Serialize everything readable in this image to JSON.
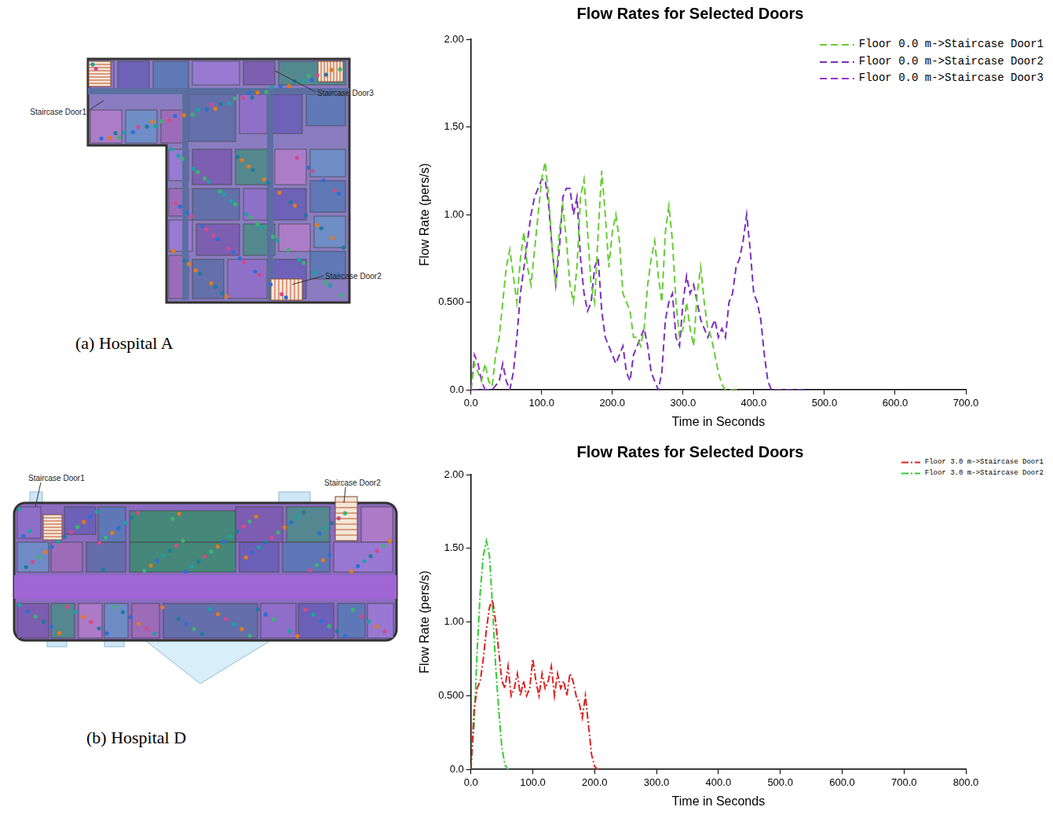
{
  "chart_data": [
    {
      "type": "line",
      "title": "Flow Rates for Selected Doors",
      "x_label": "Time in Seconds",
      "y_label": "Flow Rate (pers/s)",
      "xlim": [
        0,
        700
      ],
      "xticks": [
        {
          "value": 0,
          "label": "0.0"
        },
        {
          "value": 100,
          "label": "100.0"
        },
        {
          "value": 200,
          "label": "200.0"
        },
        {
          "value": 300,
          "label": "300.0"
        },
        {
          "value": 400,
          "label": "400.0"
        },
        {
          "value": 500,
          "label": "500.0"
        },
        {
          "value": 600,
          "label": "600.0"
        },
        {
          "value": 700,
          "label": "700.0"
        }
      ],
      "ylim": [
        0,
        2
      ],
      "yticks": [
        {
          "value": 0,
          "label": "0.0"
        },
        {
          "value": 0.5,
          "label": "0.500"
        },
        {
          "value": 1,
          "label": "1.00"
        },
        {
          "value": 1.5,
          "label": "1.50"
        },
        {
          "value": 2,
          "label": "2.00"
        }
      ],
      "grid": false,
      "legend": "top-right",
      "series": [
        {
          "name": "Floor 0.0 m->Staircase Door1",
          "color": "#66cc33",
          "line_style": "dashed",
          "x": [
            0,
            5,
            10,
            15,
            20,
            25,
            30,
            35,
            40,
            45,
            50,
            55,
            60,
            65,
            70,
            75,
            80,
            85,
            90,
            95,
            100,
            105,
            110,
            115,
            120,
            125,
            130,
            135,
            140,
            145,
            150,
            155,
            160,
            165,
            170,
            175,
            180,
            185,
            190,
            195,
            200,
            205,
            210,
            215,
            220,
            225,
            230,
            235,
            240,
            245,
            250,
            255,
            260,
            265,
            270,
            275,
            280,
            285,
            290,
            295,
            300,
            305,
            310,
            315,
            320,
            325,
            330,
            335,
            340,
            345,
            350,
            355,
            360,
            370,
            380
          ],
          "values": [
            0,
            0.15,
            0.1,
            0.05,
            0.15,
            0.05,
            0.02,
            0.2,
            0.3,
            0.5,
            0.7,
            0.8,
            0.65,
            0.5,
            0.75,
            0.9,
            0.7,
            0.6,
            0.8,
            1.0,
            1.2,
            1.3,
            1.1,
            0.8,
            0.6,
            0.9,
            1.05,
            0.85,
            0.6,
            0.5,
            0.7,
            1.1,
            1.2,
            0.9,
            0.6,
            0.5,
            0.9,
            1.25,
            1.0,
            0.7,
            0.9,
            1.0,
            0.85,
            0.55,
            0.5,
            0.45,
            0.3,
            0.3,
            0.25,
            0.35,
            0.6,
            0.75,
            0.85,
            0.65,
            0.5,
            0.9,
            1.05,
            0.85,
            0.5,
            0.3,
            0.35,
            0.5,
            0.35,
            0.25,
            0.55,
            0.7,
            0.5,
            0.35,
            0.3,
            0.2,
            0.1,
            0.03,
            0,
            0,
            0
          ]
        },
        {
          "name": "Floor 0.0 m->Staircase Door2",
          "color": "#7b2fbe",
          "line_style": "dashed",
          "x": [
            0,
            30,
            40,
            45,
            50,
            55,
            60,
            65,
            70,
            75,
            80,
            85,
            90,
            95,
            100,
            105,
            110,
            115,
            120,
            125,
            130,
            135,
            140,
            145,
            150,
            155,
            160,
            165,
            170,
            175,
            180,
            185,
            190,
            195,
            200,
            205,
            210,
            215,
            220,
            225,
            230,
            235,
            240,
            245,
            250,
            255,
            260,
            265,
            270,
            275,
            280,
            285,
            290,
            295,
            300,
            305,
            310,
            315,
            320,
            325,
            330,
            335,
            340,
            345,
            350,
            355,
            360,
            365,
            370,
            375,
            380,
            385,
            390,
            395,
            400,
            405,
            410,
            415,
            420,
            425,
            440,
            470
          ],
          "values": [
            0,
            0,
            0.05,
            0.15,
            0.05,
            0,
            0.1,
            0.3,
            0.55,
            0.7,
            0.85,
            1.0,
            1.1,
            1.15,
            1.2,
            1.2,
            1.05,
            0.8,
            0.6,
            0.8,
            1.1,
            1.15,
            1.15,
            1.0,
            1.1,
            0.75,
            0.55,
            0.45,
            0.5,
            0.7,
            0.75,
            0.45,
            0.3,
            0.25,
            0.2,
            0.15,
            0.2,
            0.25,
            0.1,
            0.05,
            0.2,
            0.25,
            0.3,
            0.35,
            0.25,
            0.1,
            0.05,
            0,
            0.1,
            0.4,
            0.5,
            0.55,
            0.3,
            0.25,
            0.5,
            0.65,
            0.55,
            0.6,
            0.5,
            0.4,
            0.35,
            0.3,
            0.35,
            0.4,
            0.3,
            0.35,
            0.3,
            0.5,
            0.55,
            0.7,
            0.75,
            0.85,
            1.0,
            0.8,
            0.55,
            0.5,
            0.4,
            0.2,
            0.05,
            0,
            0,
            0
          ]
        },
        {
          "name": "Floor 0.0 m->Staircase Door3",
          "color": "#9933cc",
          "line_style": "dashed",
          "x": [
            0,
            5,
            10,
            15,
            20,
            25
          ],
          "values": [
            0,
            0.2,
            0.15,
            0.05,
            0,
            0
          ]
        }
      ]
    },
    {
      "type": "line",
      "title": "Flow Rates for Selected Doors",
      "x_label": "Time in Seconds",
      "y_label": "Flow Rate (pers/s)",
      "xlim": [
        0,
        800
      ],
      "xticks": [
        {
          "value": 0,
          "label": "0.0"
        },
        {
          "value": 100,
          "label": "100.0"
        },
        {
          "value": 200,
          "label": "200.0"
        },
        {
          "value": 300,
          "label": "300.0"
        },
        {
          "value": 400,
          "label": "400.0"
        },
        {
          "value": 500,
          "label": "500.0"
        },
        {
          "value": 600,
          "label": "600.0"
        },
        {
          "value": 700,
          "label": "700.0"
        },
        {
          "value": 800,
          "label": "800.0"
        }
      ],
      "ylim": [
        0,
        2
      ],
      "yticks": [
        {
          "value": 0,
          "label": "0.0"
        },
        {
          "value": 0.5,
          "label": "0.500"
        },
        {
          "value": 1,
          "label": "1.00"
        },
        {
          "value": 1.5,
          "label": "1.50"
        },
        {
          "value": 2,
          "label": "2.00"
        }
      ],
      "grid": false,
      "legend": "top-right",
      "series": [
        {
          "name": "Floor 3.0 m->Staircase Door1",
          "color": "#e02020",
          "line_style": "dashdot",
          "x": [
            0,
            5,
            10,
            15,
            20,
            25,
            30,
            35,
            40,
            45,
            50,
            55,
            60,
            65,
            70,
            75,
            80,
            85,
            90,
            95,
            100,
            105,
            110,
            115,
            120,
            125,
            130,
            135,
            140,
            145,
            150,
            155,
            160,
            165,
            170,
            175,
            180,
            185,
            190,
            195,
            200,
            205
          ],
          "values": [
            0,
            0.4,
            0.55,
            0.6,
            0.75,
            0.95,
            1.1,
            1.15,
            1.0,
            0.8,
            0.6,
            0.55,
            0.7,
            0.5,
            0.55,
            0.65,
            0.5,
            0.6,
            0.5,
            0.55,
            0.75,
            0.6,
            0.5,
            0.65,
            0.55,
            0.6,
            0.7,
            0.5,
            0.65,
            0.55,
            0.6,
            0.5,
            0.65,
            0.6,
            0.5,
            0.45,
            0.35,
            0.5,
            0.3,
            0.1,
            0.02,
            0
          ]
        },
        {
          "name": "Floor 3.0 m->Staircase Door2",
          "color": "#33cc33",
          "line_style": "dashdot",
          "x": [
            0,
            5,
            10,
            15,
            20,
            25,
            30,
            35,
            40,
            45,
            50,
            55,
            60
          ],
          "values": [
            0,
            0.3,
            0.8,
            1.2,
            1.45,
            1.55,
            1.45,
            1.1,
            0.7,
            0.4,
            0.15,
            0.03,
            0
          ]
        }
      ]
    }
  ],
  "floor_plans": [
    {
      "caption": "(a) Hospital A",
      "labels": [
        "Staircase Door1",
        "Staircase Door3",
        "Staircase Door2"
      ]
    },
    {
      "caption": "(b) Hospital D",
      "labels": [
        "Staircase Door1",
        "Staircase Door2"
      ]
    }
  ]
}
